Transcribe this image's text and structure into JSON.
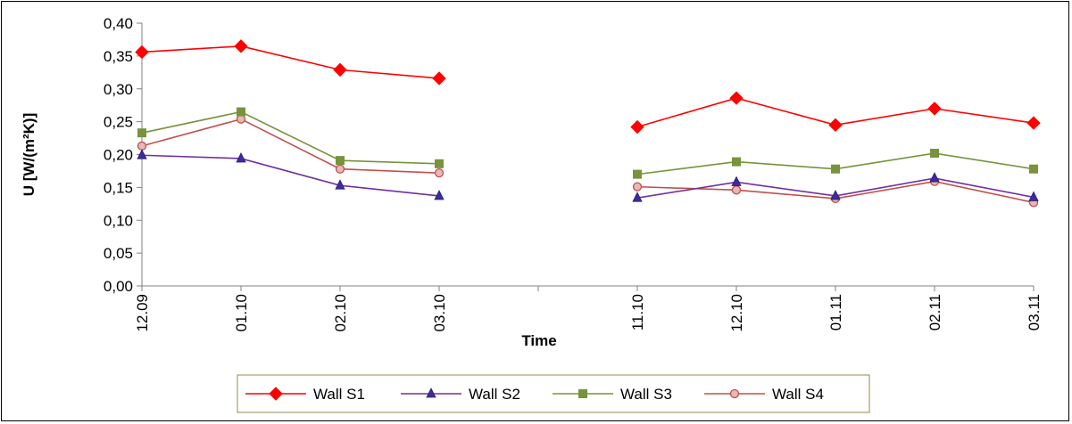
{
  "chart_data": {
    "type": "line",
    "title": "",
    "xlabel": "Time",
    "ylabel": "U [W/(m²K)]",
    "ylim": [
      0,
      0.4
    ],
    "y_ticks": [
      "0,00",
      "0,05",
      "0,10",
      "0,15",
      "0,20",
      "0,25",
      "0,30",
      "0,35",
      "0,40"
    ],
    "grid": false,
    "legend_position": "bottom",
    "categories": [
      "12.09",
      "01.10",
      "02.10",
      "03.10",
      "",
      "11.10",
      "12.10",
      "01.11",
      "02.11",
      "03.11"
    ],
    "series": [
      {
        "name": "Wall S1",
        "color": "#ff0000",
        "marker": "diamond",
        "marker_fill": "#ff0000",
        "values": [
          0.356,
          0.365,
          0.329,
          0.316,
          null,
          0.242,
          0.286,
          0.245,
          0.27,
          0.248
        ]
      },
      {
        "name": "Wall S2",
        "color": "#7030a0",
        "marker": "triangle",
        "marker_fill": "#3d2aa0",
        "values": [
          0.199,
          0.194,
          0.153,
          0.137,
          null,
          0.134,
          0.158,
          0.137,
          0.164,
          0.135
        ]
      },
      {
        "name": "Wall S3",
        "color": "#77933c",
        "marker": "square",
        "marker_fill": "#77933c",
        "values": [
          0.233,
          0.265,
          0.191,
          0.186,
          null,
          0.17,
          0.189,
          0.178,
          0.202,
          0.178
        ]
      },
      {
        "name": "Wall S4",
        "color": "#c0504d",
        "marker": "circle",
        "marker_fill": "#e6b9b8",
        "values": [
          0.213,
          0.254,
          0.178,
          0.172,
          null,
          0.151,
          0.146,
          0.133,
          0.159,
          0.127
        ]
      }
    ]
  },
  "colors": {
    "axis": "#808080",
    "legend_border": "#948a54"
  }
}
